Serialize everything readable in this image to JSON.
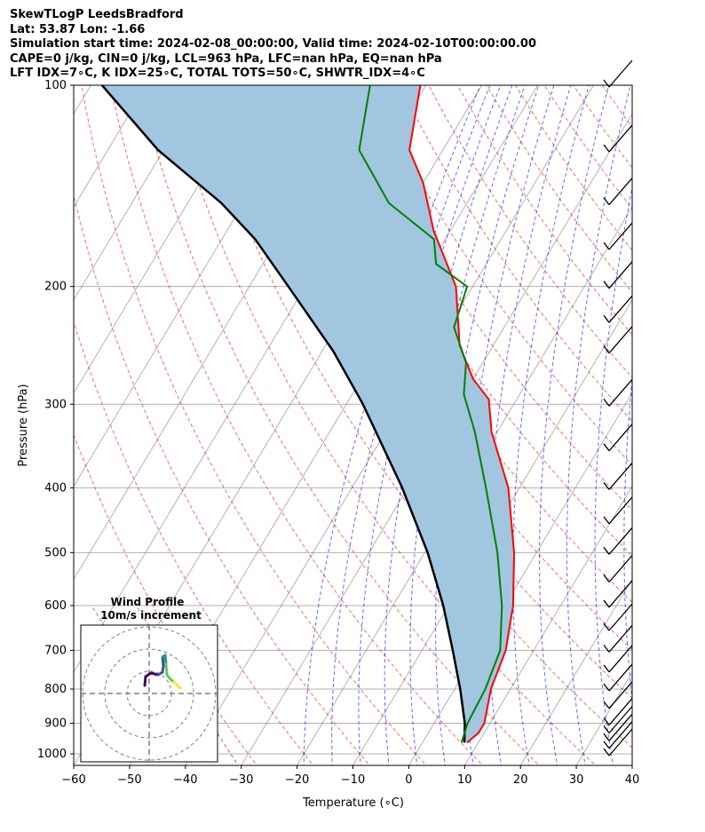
{
  "header": {
    "line1": "SkewTLogP LeedsBradford",
    "line2": "Lat: 53.87   Lon: -1.66",
    "line3": "Simulation start time: 2024-02-08_00:00:00, Valid time: 2024-02-10T00:00:00.00",
    "line4": "CAPE=0 j/kg, CIN=0 j/kg, LCL=963 hPa, LFC=nan hPa, EQ=nan hPa",
    "line5": "LFT IDX=7∘C, K IDX=25∘C, TOTAL TOTS=50∘C, SHWTR_IDX=4∘C"
  },
  "chart_data": {
    "type": "line",
    "xlabel": "Temperature (∘C)",
    "ylabel": "Pressure (hPa)",
    "xlim": [
      -60,
      40
    ],
    "ylim": [
      1050,
      100
    ],
    "yscale": "log",
    "skew": true,
    "grid": true,
    "x_ticks": [
      "−60",
      "−50",
      "−40",
      "−30",
      "−20",
      "−10",
      "0",
      "10",
      "20",
      "30",
      "40"
    ],
    "y_ticks": [
      "100",
      "200",
      "300",
      "400",
      "500",
      "600",
      "700",
      "800",
      "900",
      "1000"
    ],
    "series": [
      {
        "role": "temperature",
        "color": "#ff0000",
        "points": [
          [
            8,
            962
          ],
          [
            9,
            930
          ],
          [
            9,
            900
          ],
          [
            6.5,
            800
          ],
          [
            5,
            700
          ],
          [
            1.5,
            600
          ],
          [
            -4,
            500
          ],
          [
            -12,
            400
          ],
          [
            -21,
            330
          ],
          [
            -25,
            295
          ],
          [
            -30,
            275
          ],
          [
            -36,
            245
          ],
          [
            -43,
            200
          ],
          [
            -53,
            165
          ],
          [
            -60,
            140
          ],
          [
            -66,
            125
          ],
          [
            -71,
            100
          ]
        ]
      },
      {
        "role": "dewpoint",
        "color": "#008000",
        "points": [
          [
            7,
            962
          ],
          [
            6,
            900
          ],
          [
            5.5,
            800
          ],
          [
            4,
            700
          ],
          [
            -0.5,
            600
          ],
          [
            -7,
            500
          ],
          [
            -16,
            400
          ],
          [
            -24,
            330
          ],
          [
            -30,
            290
          ],
          [
            -33,
            260
          ],
          [
            -39,
            230
          ],
          [
            -41,
            200
          ],
          [
            -49,
            185
          ],
          [
            -52,
            170
          ],
          [
            -64,
            150
          ],
          [
            -75,
            125
          ],
          [
            -80,
            100
          ]
        ]
      },
      {
        "role": "parcel",
        "color": "#000000",
        "points": [
          [
            7.5,
            962
          ],
          [
            5.5,
            900
          ],
          [
            1,
            800
          ],
          [
            -4.5,
            700
          ],
          [
            -11,
            600
          ],
          [
            -19.5,
            500
          ],
          [
            -31,
            400
          ],
          [
            -47,
            300
          ],
          [
            -58,
            250
          ],
          [
            -73,
            200
          ],
          [
            -84,
            170
          ],
          [
            -94,
            150
          ],
          [
            -111,
            125
          ],
          [
            -128,
            100
          ]
        ]
      }
    ],
    "shaded_area": {
      "between": [
        "temperature",
        "parcel"
      ],
      "color": "#a3c6e0"
    },
    "background_lines": {
      "dry_adiabats_color": "#ff0000",
      "moist_adiabats_color": "#0000ff",
      "mixing_ratio_color": "#800080",
      "isotherms_color": "#808080"
    },
    "wind_barbs": {
      "color": "#000000",
      "pressures_hPa": [
        1000,
        975,
        950,
        925,
        900,
        850,
        800,
        750,
        700,
        650,
        600,
        550,
        500,
        450,
        400,
        350,
        300,
        250,
        225,
        200,
        175,
        150,
        125,
        100
      ]
    },
    "hodograph": {
      "title": "Wind Profile",
      "subtitle": "10m/s increment",
      "rings": 3,
      "colors": [
        "#440154",
        "#3b528b",
        "#21918c",
        "#5ec962",
        "#fde725"
      ]
    }
  }
}
